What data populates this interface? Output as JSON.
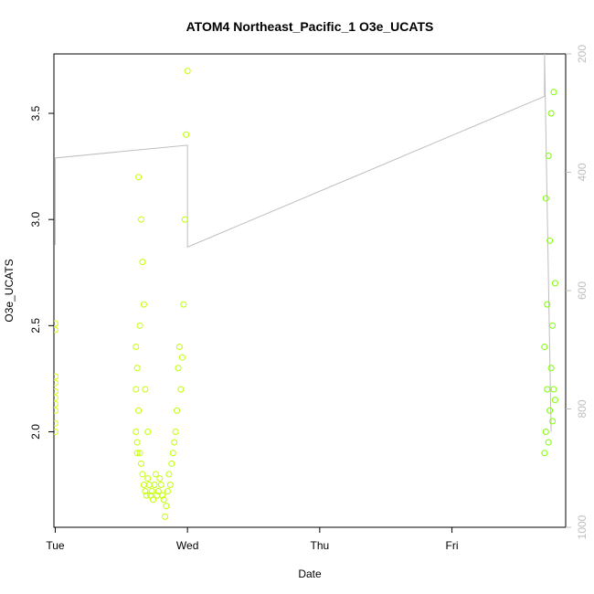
{
  "chart_data": {
    "type": "scatter",
    "title": "ATOM4 Northeast_Pacific_1 O3e_UCATS",
    "xlabel": "Date",
    "ylabel": "O3e_UCATS",
    "x_ticks": [
      "Tue",
      "Wed",
      "Thu",
      "Fri"
    ],
    "xlim": [
      -0.01,
      3.86
    ],
    "ylim": [
      1.55,
      3.78
    ],
    "y_ticks": [
      "2.0",
      "2.5",
      "3.0",
      "3.5"
    ],
    "y_tick_values": [
      2.0,
      2.5,
      3.0,
      3.5
    ],
    "y2_ticks": [
      "200",
      "400",
      "600",
      "800",
      "1000"
    ],
    "y2_tick_values": [
      200,
      400,
      600,
      800,
      1000
    ],
    "y2lim": [
      1000,
      200
    ],
    "point_color_start": "#d4ff00",
    "point_color_end": "#7cff00",
    "line_color": "#bebebe",
    "axis_color": "#000000",
    "secondary_axis_color": "#bebebe",
    "series": [
      {
        "type": "points",
        "x": [
          0.0,
          0.0,
          0.0,
          0.0,
          0.0,
          0.0,
          0.0,
          0.0,
          0.0,
          0.0
        ],
        "y": [
          2.51,
          2.48,
          2.26,
          2.23,
          2.19,
          2.16,
          2.13,
          2.1,
          2.04,
          2.0
        ]
      },
      {
        "type": "points",
        "x": [
          0.61,
          0.61,
          0.61,
          0.62,
          0.62,
          0.62,
          0.63,
          0.63,
          0.64,
          0.64,
          0.65,
          0.65,
          0.66,
          0.66,
          0.67,
          0.67,
          0.68,
          0.68,
          0.69,
          0.7,
          0.7,
          0.71,
          0.72,
          0.73,
          0.74,
          0.75,
          0.76,
          0.77,
          0.78,
          0.79,
          0.8,
          0.81,
          0.82,
          0.83,
          0.84,
          0.85,
          0.86,
          0.87,
          0.88,
          0.89,
          0.9,
          0.91,
          0.92,
          0.93,
          0.94,
          0.95,
          0.96,
          0.97,
          0.98,
          0.99,
          1.0
        ],
        "y": [
          2.4,
          2.2,
          2.0,
          1.95,
          2.3,
          1.9,
          2.1,
          3.2,
          1.9,
          2.5,
          1.85,
          3.0,
          1.8,
          2.8,
          1.75,
          2.6,
          1.72,
          2.2,
          1.7,
          1.78,
          2.0,
          1.75,
          1.7,
          1.72,
          1.68,
          1.75,
          1.8,
          1.7,
          1.72,
          1.78,
          1.75,
          1.7,
          1.68,
          1.6,
          1.65,
          1.72,
          1.8,
          1.75,
          1.85,
          1.9,
          1.95,
          2.0,
          2.1,
          2.3,
          2.4,
          2.2,
          2.35,
          2.6,
          3.0,
          3.4,
          3.7
        ]
      },
      {
        "type": "points",
        "x": [
          3.7,
          3.7,
          3.71,
          3.71,
          3.72,
          3.72,
          3.73,
          3.73,
          3.74,
          3.74,
          3.75,
          3.75,
          3.76,
          3.76,
          3.77,
          3.77,
          3.78,
          3.78
        ],
        "y": [
          1.9,
          2.4,
          2.0,
          3.1,
          2.2,
          2.6,
          1.95,
          3.3,
          2.1,
          2.9,
          2.3,
          3.5,
          2.05,
          2.5,
          2.2,
          3.6,
          2.15,
          2.7
        ]
      }
    ],
    "line": {
      "x": [
        0.0,
        0.0,
        1.0,
        1.0,
        3.7,
        3.7,
        3.75
      ],
      "y": [
        2.88,
        3.29,
        3.35,
        2.87,
        3.58,
        3.78,
        2.0
      ]
    }
  }
}
